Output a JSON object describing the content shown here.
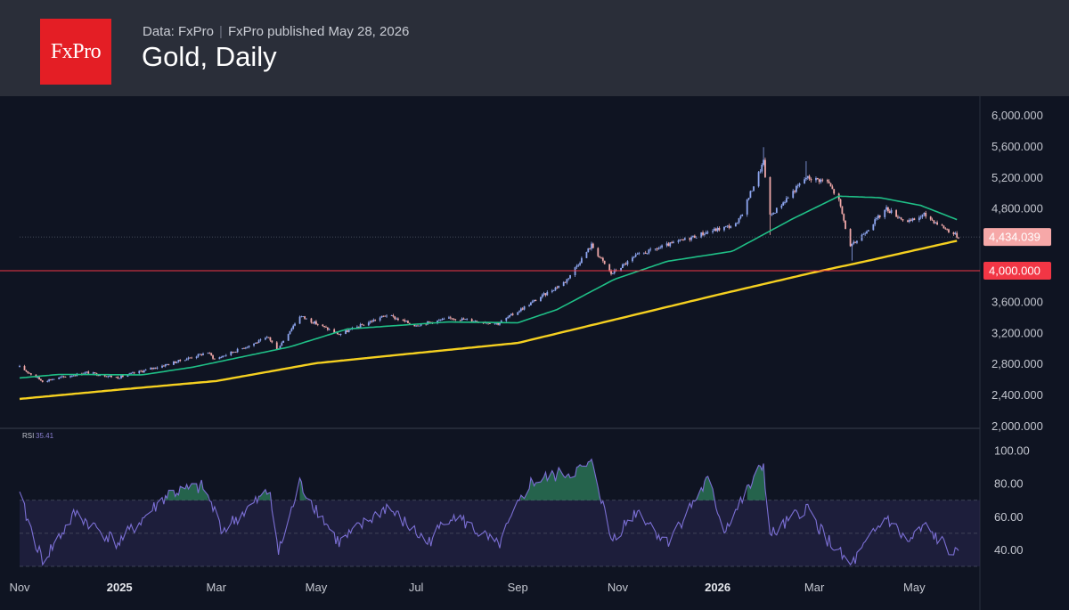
{
  "header": {
    "logo_text": "FxPro",
    "data_source": "Data: FxPro",
    "published": "FxPro published May 28, 2026",
    "title": "Gold, Daily"
  },
  "colors": {
    "background": "#0f1422",
    "header_bg": "#2a2e39",
    "brand_red": "#e41e25",
    "candle_up": "#8ea6f0",
    "candle_down": "#f0a8a8",
    "ma_fast": "#1fc087",
    "ma_slow": "#f5d020",
    "level_line": "#f23645",
    "rsi_line": "#7b6fd4"
  },
  "chart_data": [
    {
      "type": "candlestick",
      "title": "Gold, Daily",
      "y_ticks": [
        "6,000.000",
        "5,600.000",
        "5,200.000",
        "4,800.000",
        "4,400.000",
        "4,000.000",
        "3,600.000",
        "3,200.000",
        "2,800.000",
        "2,400.000",
        "2,000.000"
      ],
      "ylim": [
        2000,
        6000
      ],
      "x_ticks": [
        "Nov",
        "2025",
        "Mar",
        "May",
        "Jul",
        "Sep",
        "Nov",
        "2026",
        "Mar",
        "May"
      ],
      "x_bold": [
        "2025",
        "2026"
      ],
      "x_ranges": [
        "2024-11-01",
        "2026-05-28"
      ],
      "last_price": 4434.039,
      "last_price_label": "4,434.039",
      "horizontal_level": 4000,
      "horizontal_level_label": "4,000.000",
      "anchors_close": [
        [
          "2024-11-01",
          2760
        ],
        [
          "2024-11-15",
          2580
        ],
        [
          "2024-12-12",
          2690
        ],
        [
          "2024-12-31",
          2625
        ],
        [
          "2025-01-31",
          2800
        ],
        [
          "2025-02-24",
          2950
        ],
        [
          "2025-02-28",
          2860
        ],
        [
          "2025-04-02",
          3140
        ],
        [
          "2025-04-07",
          2980
        ],
        [
          "2025-04-21",
          3420
        ],
        [
          "2025-05-15",
          3180
        ],
        [
          "2025-06-13",
          3430
        ],
        [
          "2025-06-30",
          3300
        ],
        [
          "2025-07-23",
          3390
        ],
        [
          "2025-08-20",
          3320
        ],
        [
          "2025-09-30",
          3860
        ],
        [
          "2025-10-16",
          4330
        ],
        [
          "2025-10-28",
          3960
        ],
        [
          "2025-11-13",
          4200
        ],
        [
          "2025-12-26",
          4500
        ],
        [
          "2026-01-13",
          4600
        ],
        [
          "2026-01-29",
          5400
        ],
        [
          "2026-02-02",
          4700
        ],
        [
          "2026-02-24",
          5200
        ],
        [
          "2026-03-09",
          5150
        ],
        [
          "2026-03-16",
          4900
        ],
        [
          "2026-03-23",
          4300
        ],
        [
          "2026-04-14",
          4800
        ],
        [
          "2026-04-27",
          4620
        ],
        [
          "2026-05-07",
          4720
        ],
        [
          "2026-05-28",
          4434
        ]
      ],
      "wick_events": [
        [
          "2026-01-29",
          5590,
          null
        ],
        [
          "2026-02-02",
          null,
          4460
        ],
        [
          "2026-02-24",
          5410,
          null
        ],
        [
          "2026-03-24",
          null,
          4130
        ]
      ],
      "series": [
        {
          "name": "",
          "color": "#1fc087",
          "anchors": [
            [
              "2024-11-01",
              2620
            ],
            [
              "2024-11-25",
              2665
            ],
            [
              "2025-01-15",
              2660
            ],
            [
              "2025-02-15",
              2760
            ],
            [
              "2025-04-15",
              3020
            ],
            [
              "2025-05-20",
              3250
            ],
            [
              "2025-07-20",
              3340
            ],
            [
              "2025-09-01",
              3330
            ],
            [
              "2025-09-25",
              3500
            ],
            [
              "2025-10-30",
              3890
            ],
            [
              "2025-12-01",
              4120
            ],
            [
              "2026-01-10",
              4250
            ],
            [
              "2026-02-15",
              4660
            ],
            [
              "2026-03-16",
              4960
            ],
            [
              "2026-04-10",
              4940
            ],
            [
              "2026-05-05",
              4840
            ],
            [
              "2026-05-28",
              4650
            ]
          ]
        },
        {
          "name": "",
          "color": "#f5d020",
          "anchors": [
            [
              "2024-11-01",
              2350
            ],
            [
              "2025-01-01",
              2470
            ],
            [
              "2025-03-01",
              2580
            ],
            [
              "2025-05-01",
              2810
            ],
            [
              "2025-07-01",
              2940
            ],
            [
              "2025-09-01",
              3070
            ],
            [
              "2025-11-01",
              3380
            ],
            [
              "2026-01-01",
              3690
            ],
            [
              "2026-03-01",
              3980
            ],
            [
              "2026-04-01",
              4120
            ],
            [
              "2026-05-28",
              4390
            ]
          ]
        }
      ]
    },
    {
      "type": "line",
      "title": "RSI",
      "current_value_label": "35.41",
      "y_ticks": [
        "100.00",
        "80.00",
        "60.00",
        "40.00"
      ],
      "ylim": [
        30,
        100
      ],
      "overbought": 70,
      "oversold": 30,
      "midline": 50,
      "anchors": [
        [
          "2024-11-01",
          72
        ],
        [
          "2024-11-15",
          33
        ],
        [
          "2024-12-05",
          62
        ],
        [
          "2024-12-31",
          44
        ],
        [
          "2025-01-31",
          74
        ],
        [
          "2025-02-21",
          78
        ],
        [
          "2025-03-05",
          52
        ],
        [
          "2025-04-03",
          76
        ],
        [
          "2025-04-08",
          38
        ],
        [
          "2025-04-21",
          80
        ],
        [
          "2025-05-15",
          44
        ],
        [
          "2025-06-13",
          66
        ],
        [
          "2025-07-08",
          44
        ],
        [
          "2025-07-23",
          62
        ],
        [
          "2025-08-20",
          42
        ],
        [
          "2025-09-08",
          80
        ],
        [
          "2025-09-20",
          84
        ],
        [
          "2025-10-08",
          88
        ],
        [
          "2025-10-17",
          92
        ],
        [
          "2025-10-28",
          46
        ],
        [
          "2025-11-13",
          64
        ],
        [
          "2025-12-01",
          44
        ],
        [
          "2025-12-26",
          82
        ],
        [
          "2026-01-05",
          52
        ],
        [
          "2026-01-29",
          92
        ],
        [
          "2026-02-02",
          48
        ],
        [
          "2026-02-24",
          66
        ],
        [
          "2026-03-09",
          46
        ],
        [
          "2026-03-23",
          30
        ],
        [
          "2026-04-14",
          60
        ],
        [
          "2026-04-27",
          44
        ],
        [
          "2026-05-07",
          54
        ],
        [
          "2026-05-28",
          35.4
        ]
      ]
    }
  ]
}
